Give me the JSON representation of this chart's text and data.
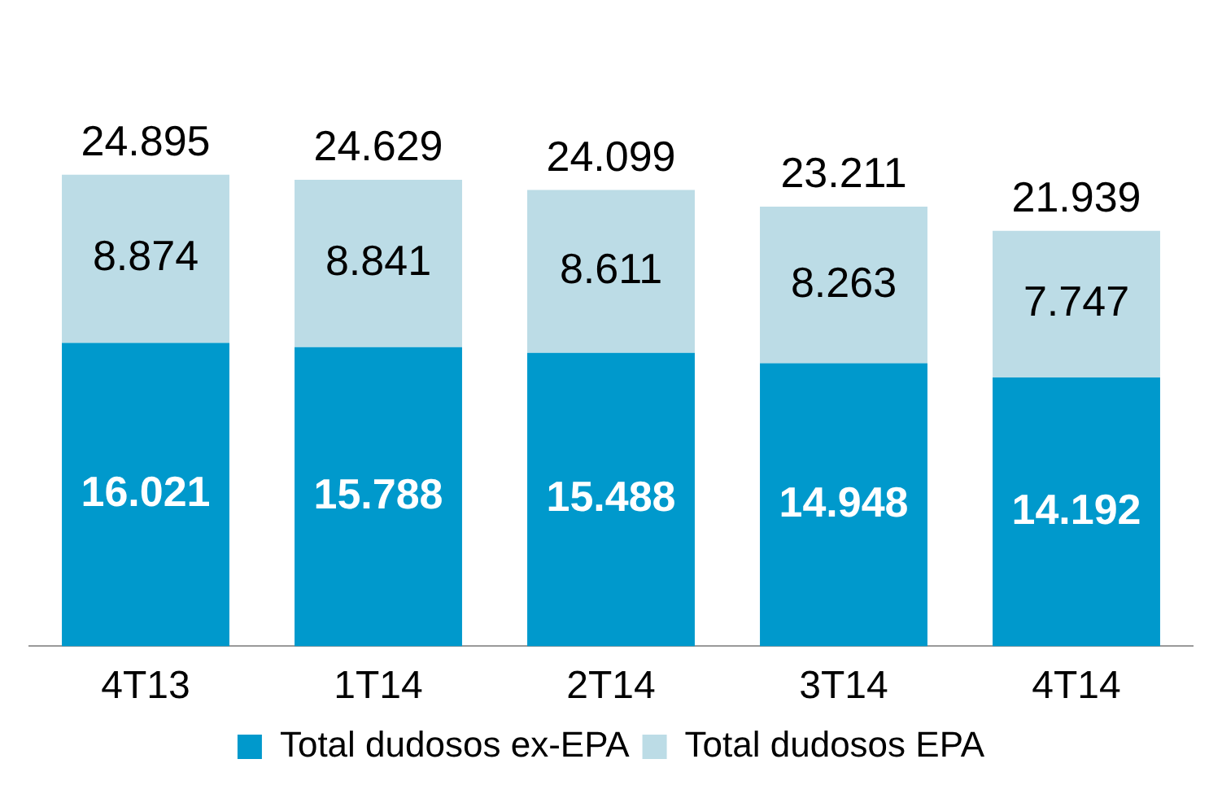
{
  "chart_data": {
    "type": "bar",
    "stacked": true,
    "categories": [
      "4T13",
      "1T14",
      "2T14",
      "3T14",
      "4T14"
    ],
    "series": [
      {
        "name": "Total dudosos ex-EPA",
        "color": "#0099cc",
        "values": [
          16021,
          15788,
          15488,
          14948,
          14192
        ],
        "value_labels": [
          "16.021",
          "15.788",
          "15.488",
          "14.948",
          "14.192"
        ]
      },
      {
        "name": "Total dudosos EPA",
        "color": "#bcdce6",
        "values": [
          8874,
          8841,
          8611,
          8263,
          7747
        ],
        "value_labels": [
          "8.874",
          "8.841",
          "8.611",
          "8.263",
          "7.747"
        ]
      }
    ],
    "totals": [
      "24.895",
      "24.629",
      "24.099",
      "23.211",
      "21.939"
    ],
    "legend": "bottom",
    "grid": false
  }
}
